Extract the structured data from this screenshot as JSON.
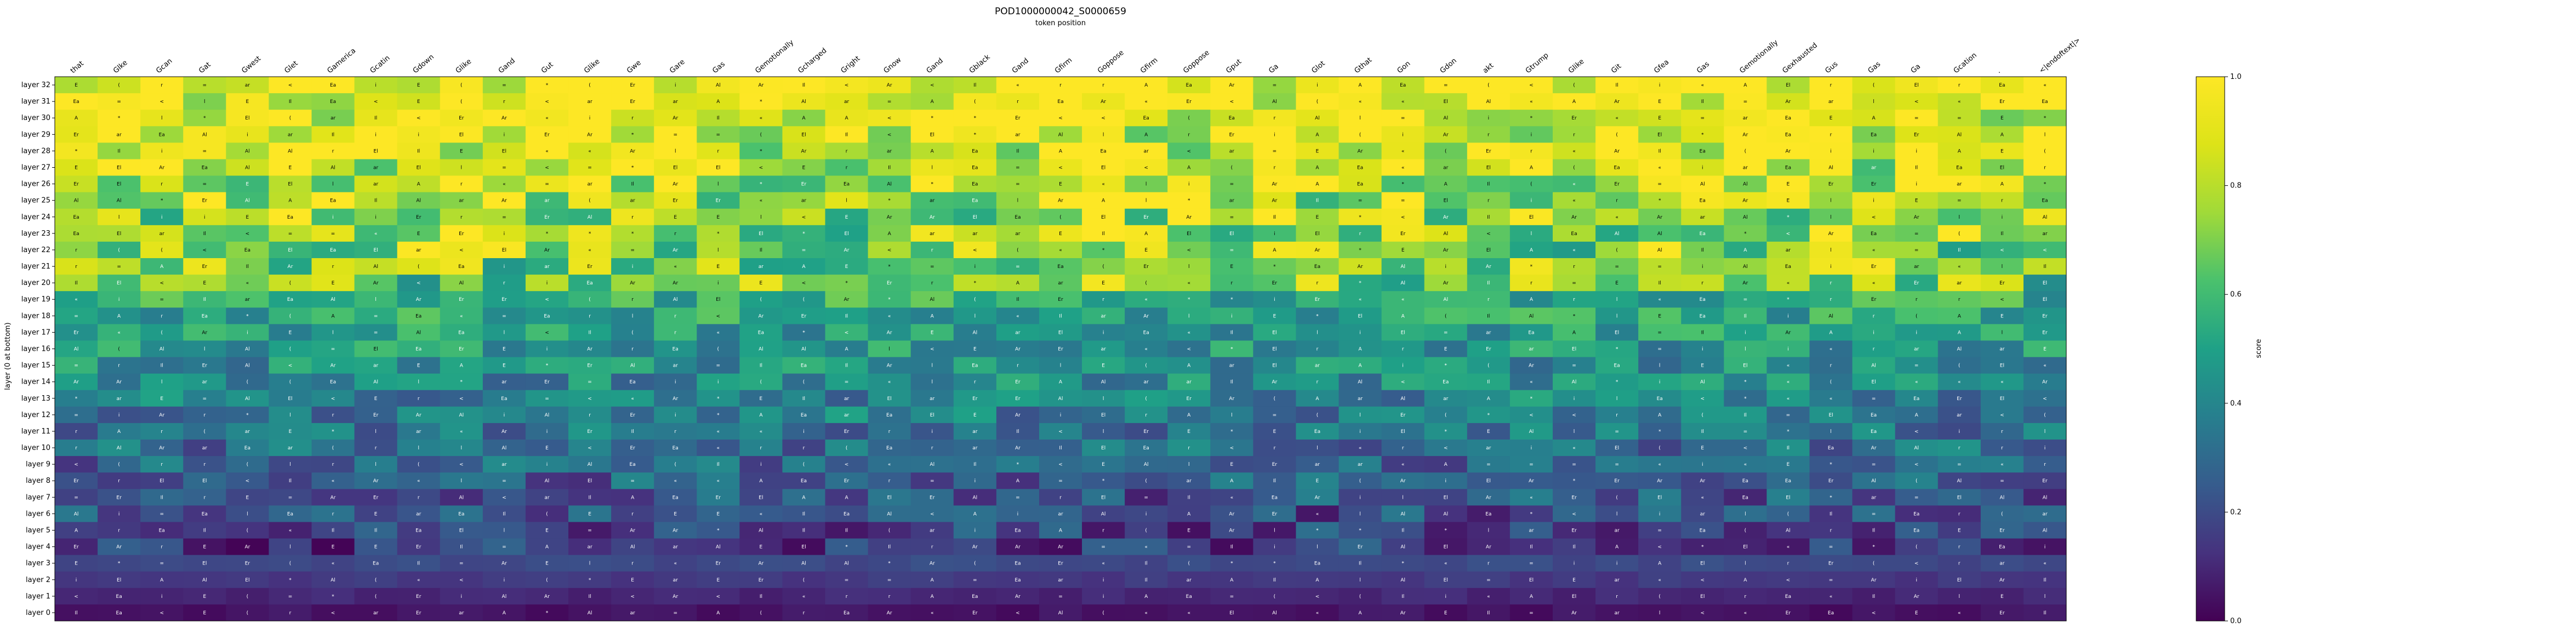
{
  "chart_data": {
    "type": "heatmap",
    "title": "POD1000000042_S0000659",
    "subtitle": "token position",
    "ylabel": "layer (0 at bottom)",
    "colorbar_label": "score",
    "colormap": "viridis",
    "clim": [
      0.0,
      1.0
    ],
    "colorbar_ticks": [
      "0.0",
      "0.2",
      "0.4",
      "0.6",
      "0.8",
      "1.0"
    ],
    "x_tokens": [
      "that",
      "Glke",
      "Gcan",
      "Gat",
      "Gwest",
      "Glet",
      "Gamerica",
      "Gcatin",
      "Gdown",
      "Glike",
      "Gand",
      "Gut",
      "Glike",
      "Gwe",
      "Gare",
      "Gas",
      "Gemotionally",
      "Gcharged",
      "Gright",
      "Gnow",
      "Gand",
      "Gblack",
      "Gand",
      "Gfirm",
      "Goppose",
      "Gfirm",
      "Goppose",
      "Gput",
      "Ga",
      "Glot",
      "Gthat",
      "Gon",
      "Gdon",
      "akt",
      "Gtrump",
      "Glike",
      "Git",
      "Gfea",
      "Gas",
      "Gemotionally",
      "Gexhausted",
      "Gus",
      "Gas",
      "Ga",
      "Gcation",
      ".",
      "<|endoftext|>"
    ],
    "layers": [
      "layer 32",
      "layer 31",
      "layer 30",
      "layer 29",
      "layer 28",
      "layer 27",
      "layer 26",
      "layer 25",
      "layer 24",
      "layer 23",
      "layer 22",
      "layer 21",
      "layer 20",
      "layer 19",
      "layer 18",
      "layer 17",
      "layer 16",
      "layer 15",
      "layer 14",
      "layer 13",
      "layer 12",
      "layer 11",
      "layer 10",
      "layer 9",
      "layer 8",
      "layer 7",
      "layer 6",
      "layer 5",
      "layer 4",
      "layer 3",
      "layer 2",
      "layer 1",
      "layer 0"
    ],
    "cell_glyphs": [
      "A",
      "Al",
      "Ar",
      "E",
      "El",
      "Er",
      "i",
      "l",
      "Il",
      "(",
      "=",
      "«",
      "ar",
      "Ea",
      "*",
      "r",
      "<"
    ],
    "grid": false
  }
}
